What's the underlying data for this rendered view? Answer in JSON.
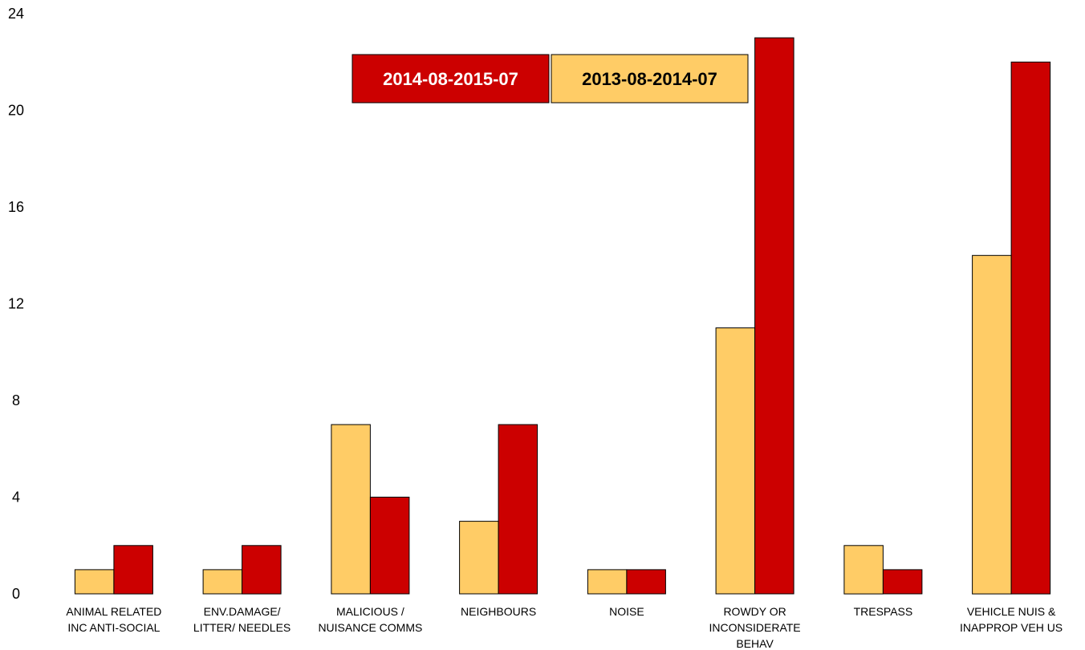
{
  "chart_data": {
    "type": "bar",
    "categories": [
      [
        "ANIMAL RELATED",
        "INC ANTI-SOCIAL"
      ],
      [
        "ENV.DAMAGE/",
        "LITTER/ NEEDLES"
      ],
      [
        "MALICIOUS /",
        "NUISANCE COMMS"
      ],
      [
        "NEIGHBOURS"
      ],
      [
        "NOISE"
      ],
      [
        "ROWDY OR",
        "INCONSIDERATE",
        "BEHAV"
      ],
      [
        "TRESPASS"
      ],
      [
        "VEHICLE NUIS &",
        "INAPPROP VEH US"
      ]
    ],
    "series": [
      {
        "name": "2013-08-2014-07",
        "color": "#ffcc66",
        "values": [
          1,
          1,
          7,
          3,
          1,
          11,
          2,
          14
        ]
      },
      {
        "name": "2014-08-2015-07",
        "color": "#cc0000",
        "values": [
          2,
          2,
          4,
          7,
          1,
          23,
          1,
          22
        ]
      }
    ],
    "yticks": [
      "0",
      "4",
      "8",
      "12",
      "16",
      "20",
      "24"
    ],
    "ylim": [
      0,
      24
    ],
    "grid": false,
    "legend": {
      "placement": "top-center",
      "order": [
        "2014-08-2015-07",
        "2013-08-2014-07"
      ],
      "text_colors": {
        "2014-08-2015-07": "#ffffff",
        "2013-08-2014-07": "#000000"
      }
    }
  }
}
